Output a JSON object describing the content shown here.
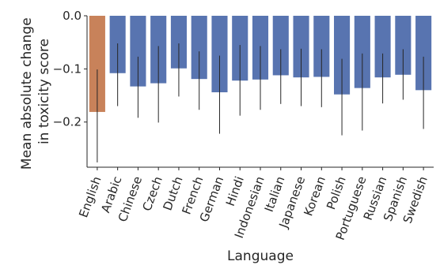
{
  "chart_data": {
    "type": "bar",
    "title": "",
    "xlabel": "Language",
    "ylabel": "Mean absolute change in toxicity score",
    "ylabel_lines": [
      "Mean absolute change",
      "in toxicity score"
    ],
    "ylim": [
      -0.285,
      0.0
    ],
    "yticks": [
      0.0,
      -0.1,
      -0.2
    ],
    "ytick_labels": [
      "0.0",
      "−0.1",
      "−0.2"
    ],
    "grid": false,
    "categories": [
      "English",
      "Arabic",
      "Chinese",
      "Czech",
      "Dutch",
      "French",
      "German",
      "Hindi",
      "Indonesian",
      "Italian",
      "Japanese",
      "Korean",
      "Polish",
      "Portuguese",
      "Russian",
      "Spanish",
      "Swedish"
    ],
    "values": [
      -0.181,
      -0.108,
      -0.133,
      -0.127,
      -0.099,
      -0.119,
      -0.144,
      -0.122,
      -0.12,
      -0.112,
      -0.116,
      -0.115,
      -0.148,
      -0.136,
      -0.116,
      -0.111,
      -0.14
    ],
    "error_low": [
      -0.276,
      -0.17,
      -0.192,
      -0.201,
      -0.152,
      -0.177,
      -0.222,
      -0.188,
      -0.177,
      -0.166,
      -0.17,
      -0.172,
      -0.225,
      -0.216,
      -0.165,
      -0.158,
      -0.213
    ],
    "error_high": [
      -0.101,
      -0.052,
      -0.077,
      -0.057,
      -0.052,
      -0.067,
      -0.075,
      -0.055,
      -0.057,
      -0.063,
      -0.062,
      -0.063,
      -0.081,
      -0.071,
      -0.071,
      -0.063,
      -0.077
    ],
    "colors": {
      "highlight": "#c8825a",
      "default": "#5874b0",
      "axis": "#262626",
      "errorbar": "#262626"
    },
    "highlight_categories": [
      "English"
    ]
  }
}
